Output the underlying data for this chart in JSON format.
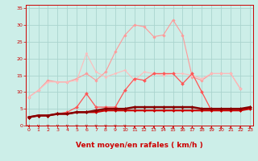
{
  "background_color": "#cceee8",
  "grid_color": "#aad4ce",
  "x_values": [
    0,
    1,
    2,
    3,
    4,
    5,
    6,
    7,
    8,
    9,
    10,
    11,
    12,
    13,
    14,
    15,
    16,
    17,
    18,
    19,
    20,
    21,
    22,
    23
  ],
  "series": [
    {
      "name": "light_pink_top",
      "color": "#ff9999",
      "linewidth": 0.8,
      "marker": "D",
      "markersize": 1.8,
      "values": [
        8.5,
        10.5,
        13.5,
        13.0,
        13.0,
        14.0,
        15.5,
        13.5,
        16.0,
        22.0,
        27.0,
        30.0,
        29.5,
        26.5,
        27.0,
        31.5,
        27.0,
        14.5,
        13.5,
        15.5,
        15.5,
        15.5,
        11.0,
        null
      ]
    },
    {
      "name": "light_pink_mid",
      "color": "#ffbbbb",
      "linewidth": 0.8,
      "marker": "D",
      "markersize": 1.5,
      "values": [
        8.5,
        10.5,
        13.0,
        13.0,
        13.0,
        13.5,
        21.5,
        16.0,
        14.5,
        15.5,
        16.5,
        13.5,
        16.0,
        15.5,
        15.0,
        15.5,
        15.5,
        15.0,
        14.0,
        15.5,
        15.5,
        15.5,
        11.0,
        null
      ]
    },
    {
      "name": "medium_red_upper",
      "color": "#ff5555",
      "linewidth": 0.9,
      "marker": "D",
      "markersize": 2.0,
      "values": [
        2.5,
        3.0,
        3.0,
        3.5,
        4.0,
        5.5,
        9.5,
        5.5,
        5.5,
        5.5,
        10.5,
        14.0,
        13.5,
        15.5,
        15.5,
        15.5,
        12.5,
        15.5,
        10.0,
        4.5,
        4.5,
        4.5,
        4.5,
        5.5
      ]
    },
    {
      "name": "dark_red_flat",
      "color": "#cc0000",
      "linewidth": 1.5,
      "marker": "D",
      "markersize": 2.0,
      "values": [
        2.5,
        3.0,
        3.0,
        3.5,
        3.5,
        4.0,
        4.0,
        4.0,
        4.5,
        4.5,
        4.5,
        4.5,
        4.5,
        4.5,
        4.5,
        4.5,
        4.5,
        4.5,
        4.5,
        4.5,
        4.5,
        4.5,
        4.5,
        5.0
      ]
    },
    {
      "name": "darkest_red",
      "color": "#880000",
      "linewidth": 1.8,
      "marker": "D",
      "markersize": 2.0,
      "values": [
        2.5,
        3.0,
        3.0,
        3.5,
        3.5,
        4.0,
        4.0,
        4.5,
        5.0,
        5.0,
        5.0,
        5.5,
        5.5,
        5.5,
        5.5,
        5.5,
        5.5,
        5.5,
        5.0,
        5.0,
        5.0,
        5.0,
        5.0,
        5.5
      ]
    }
  ],
  "xlabel": "Vent moyen/en rafales ( km/h )",
  "xlabel_color": "#cc0000",
  "xlabel_fontsize": 6.5,
  "xlim": [
    -0.3,
    23.3
  ],
  "ylim": [
    0,
    36
  ],
  "yticks": [
    0,
    5,
    10,
    15,
    20,
    25,
    30,
    35
  ],
  "xticks": [
    0,
    1,
    2,
    3,
    4,
    5,
    6,
    7,
    8,
    9,
    10,
    11,
    12,
    13,
    14,
    15,
    16,
    17,
    18,
    19,
    20,
    21,
    22,
    23
  ],
  "tick_color": "#cc0000",
  "tick_fontsize": 4.5,
  "arrow_down_x": [
    0,
    1,
    2,
    3,
    4,
    5,
    6,
    7,
    8,
    9,
    10
  ],
  "arrow_up_x": [
    11,
    12,
    13,
    14,
    15,
    16,
    17,
    18,
    19,
    20,
    21,
    22,
    23
  ]
}
